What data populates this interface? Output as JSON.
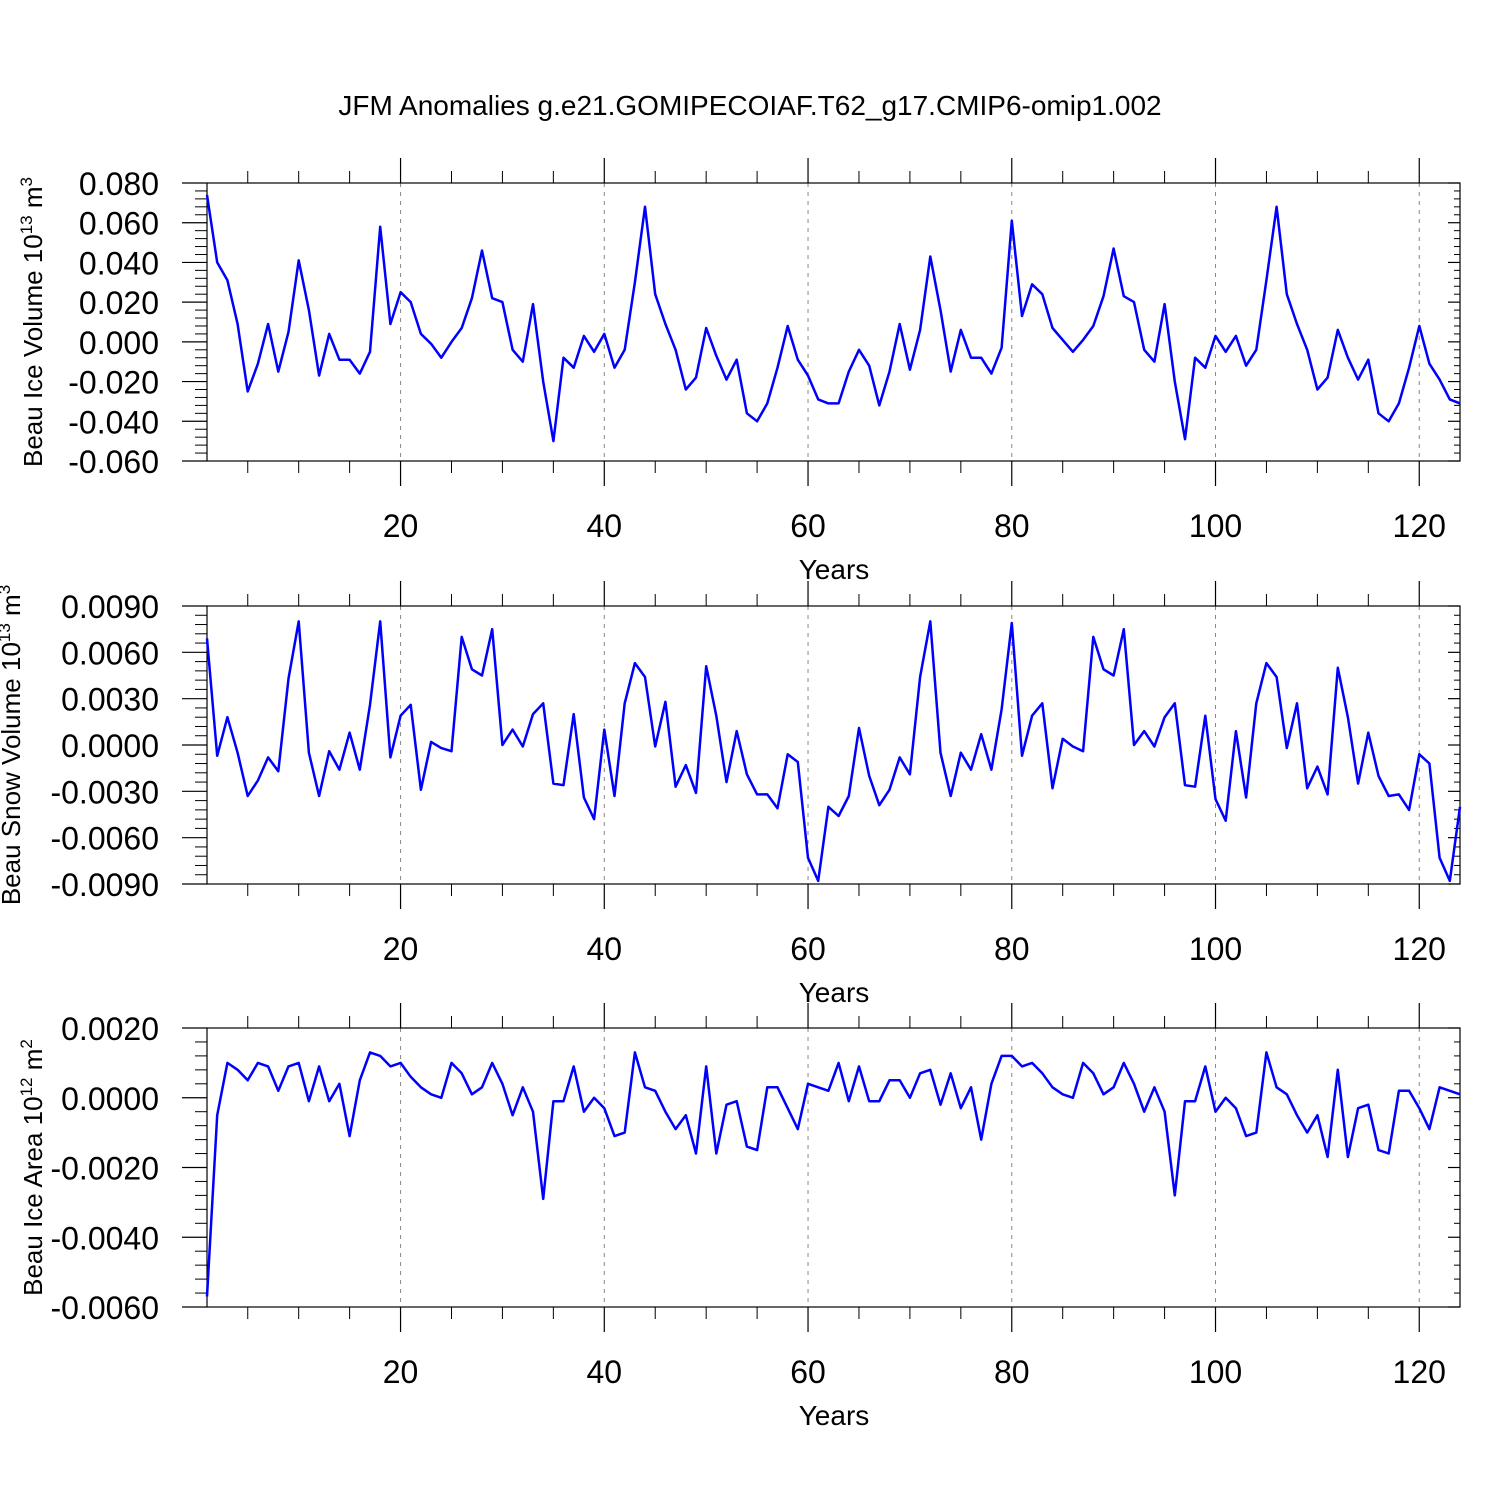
{
  "title": "JFM Anomalies g.e21.GOMIPECOIAF.T62_g17.CMIP6-omip1.002",
  "colors": {
    "series": "#0000ff",
    "grid": "#888888",
    "axis": "#000000"
  },
  "chart_data": [
    {
      "type": "line",
      "ylabel": "Beau Ice Volume 10",
      "ylabel_exp": "13",
      "ylabel_unit": " m",
      "ylabel_unit_exp": "3",
      "xlabel": "Years",
      "xlim": [
        1,
        124
      ],
      "ylim": [
        -0.06,
        0.08
      ],
      "yticks": [
        -0.06,
        -0.04,
        -0.02,
        0.0,
        0.02,
        0.04,
        0.06,
        0.08
      ],
      "ytick_labels": [
        "-0.060",
        "-0.040",
        "-0.020",
        "0.000",
        "0.020",
        "0.040",
        "0.060",
        "0.080"
      ],
      "xticks": [
        20,
        40,
        60,
        80,
        100,
        120
      ],
      "xtick_labels": [
        "20",
        "40",
        "60",
        "80",
        "100",
        "120"
      ],
      "grid": "vertical dashed at x ticks",
      "series": [
        {
          "name": "Beau Ice Volume",
          "x_start": 1,
          "values": [
            0.074,
            0.04,
            0.031,
            0.009,
            -0.025,
            -0.011,
            0.009,
            -0.015,
            0.005,
            0.041,
            0.016,
            -0.017,
            0.004,
            -0.009,
            -0.009,
            -0.016,
            -0.005,
            0.058,
            0.009,
            0.025,
            0.02,
            0.004,
            -0.001,
            -0.008,
            0.0,
            0.007,
            0.022,
            0.046,
            0.022,
            0.02,
            -0.004,
            -0.01,
            0.019,
            -0.02,
            -0.05,
            -0.008,
            -0.013,
            0.003,
            -0.005,
            0.004,
            -0.013,
            -0.004,
            0.03,
            0.068,
            0.024,
            0.009,
            -0.004,
            -0.024,
            -0.018,
            0.007,
            -0.007,
            -0.019,
            -0.009,
            -0.036,
            -0.04,
            -0.031,
            -0.013,
            0.008,
            -0.009,
            -0.017,
            -0.029,
            -0.031,
            -0.031,
            -0.015,
            -0.004,
            -0.012,
            -0.032,
            -0.015,
            0.009,
            -0.014,
            0.006,
            0.043,
            0.016,
            -0.015,
            0.006,
            -0.008,
            -0.008,
            -0.016,
            -0.003,
            0.061,
            0.013,
            0.029,
            0.024,
            0.007,
            0.001,
            -0.005,
            0.001,
            0.008,
            0.023,
            0.047,
            0.023,
            0.02,
            -0.004,
            -0.01,
            0.019,
            -0.02,
            -0.049,
            -0.008,
            -0.013,
            0.003,
            -0.005,
            0.003,
            -0.012,
            -0.004,
            0.031,
            0.068,
            0.024,
            0.009,
            -0.004,
            -0.024,
            -0.018,
            0.006,
            -0.008,
            -0.019,
            -0.009,
            -0.036,
            -0.04,
            -0.031,
            -0.013,
            0.008,
            -0.011,
            -0.019,
            -0.029,
            -0.031
          ]
        }
      ]
    },
    {
      "type": "line",
      "ylabel": "Beau Snow Volume 10",
      "ylabel_exp": "13",
      "ylabel_unit": " m",
      "ylabel_unit_exp": "3",
      "xlabel": "Years",
      "xlim": [
        1,
        124
      ],
      "ylim": [
        -0.009,
        0.009
      ],
      "yticks": [
        -0.009,
        -0.006,
        -0.003,
        0.0,
        0.003,
        0.006,
        0.009
      ],
      "ytick_labels": [
        "-0.0090",
        "-0.0060",
        "-0.0030",
        "0.0000",
        "0.0030",
        "0.0060",
        "0.0090"
      ],
      "xticks": [
        20,
        40,
        60,
        80,
        100,
        120
      ],
      "xtick_labels": [
        "20",
        "40",
        "60",
        "80",
        "100",
        "120"
      ],
      "grid": "vertical dashed at x ticks",
      "series": [
        {
          "name": "Beau Snow Volume",
          "x_start": 1,
          "values": [
            0.0069,
            -0.0007,
            0.0018,
            -0.0005,
            -0.0033,
            -0.0023,
            -0.0008,
            -0.0017,
            0.0043,
            0.008,
            -0.0005,
            -0.0033,
            -0.0004,
            -0.0016,
            0.0008,
            -0.0016,
            0.0026,
            0.008,
            -0.0008,
            0.0019,
            0.0026,
            -0.0029,
            0.0002,
            -0.0002,
            -0.0004,
            0.007,
            0.0049,
            0.0045,
            0.0075,
            0.0,
            0.001,
            -0.0001,
            0.002,
            0.0027,
            -0.0025,
            -0.0026,
            0.002,
            -0.0034,
            -0.0048,
            0.001,
            -0.0033,
            0.0027,
            0.0053,
            0.0044,
            -0.0001,
            0.0028,
            -0.0027,
            -0.0013,
            -0.0031,
            0.0051,
            0.0019,
            -0.0024,
            0.0009,
            -0.0019,
            -0.0032,
            -0.0032,
            -0.0041,
            -0.0006,
            -0.0011,
            -0.0073,
            -0.0088,
            -0.004,
            -0.0046,
            -0.0033,
            0.0011,
            -0.002,
            -0.0039,
            -0.0029,
            -0.0008,
            -0.0019,
            0.0044,
            0.008,
            -0.0005,
            -0.0033,
            -0.0005,
            -0.0016,
            0.0007,
            -0.0016,
            0.0023,
            0.0079,
            -0.0007,
            0.0019,
            0.0027,
            -0.0028,
            0.0004,
            -0.0001,
            -0.0004,
            0.007,
            0.0049,
            0.0045,
            0.0075,
            0.0,
            0.0009,
            -0.0001,
            0.0018,
            0.0027,
            -0.0026,
            -0.0027,
            0.0019,
            -0.0035,
            -0.0049,
            0.0009,
            -0.0034,
            0.0027,
            0.0053,
            0.0044,
            -0.0002,
            0.0027,
            -0.0028,
            -0.0014,
            -0.0032,
            0.005,
            0.0018,
            -0.0025,
            0.0008,
            -0.002,
            -0.0033,
            -0.0032,
            -0.0042,
            -0.0006,
            -0.0012,
            -0.0073,
            -0.0088,
            -0.004
          ]
        }
      ]
    },
    {
      "type": "line",
      "ylabel": "Beau Ice Area 10",
      "ylabel_exp": "12",
      "ylabel_unit": " m",
      "ylabel_unit_exp": "2",
      "xlabel": "Years",
      "xlim": [
        1,
        124
      ],
      "ylim": [
        -0.006,
        0.002
      ],
      "yticks": [
        -0.006,
        -0.004,
        -0.002,
        0.0,
        0.002
      ],
      "ytick_labels": [
        "-0.0060",
        "-0.0040",
        "-0.0020",
        "0.0000",
        "0.0020"
      ],
      "xticks": [
        20,
        40,
        60,
        80,
        100,
        120
      ],
      "xtick_labels": [
        "20",
        "40",
        "60",
        "80",
        "100",
        "120"
      ],
      "grid": "vertical dashed at x ticks",
      "series": [
        {
          "name": "Beau Ice Area",
          "x_start": 1,
          "values": [
            -0.0057,
            -0.0005,
            0.001,
            0.0008,
            0.0005,
            0.001,
            0.0009,
            0.0002,
            0.0009,
            0.001,
            -0.0001,
            0.0009,
            -0.0001,
            0.0004,
            -0.0011,
            0.0005,
            0.0013,
            0.0012,
            0.0009,
            0.001,
            0.0006,
            0.0003,
            0.0001,
            0.0,
            0.001,
            0.0007,
            0.0001,
            0.0003,
            0.001,
            0.0004,
            -0.0005,
            0.0003,
            -0.0004,
            -0.0029,
            -0.0001,
            -0.0001,
            0.0009,
            -0.0004,
            0.0,
            -0.0003,
            -0.0011,
            -0.001,
            0.0013,
            0.0003,
            0.0002,
            -0.0004,
            -0.0009,
            -0.0005,
            -0.0016,
            0.0009,
            -0.0016,
            -0.0002,
            -0.0001,
            -0.0014,
            -0.0015,
            0.0003,
            0.0003,
            -0.0003,
            -0.0009,
            0.0004,
            0.0003,
            0.0002,
            0.001,
            -0.0001,
            0.0009,
            -0.0001,
            -0.0001,
            0.0005,
            0.0005,
            0.0,
            0.0007,
            0.0008,
            -0.0002,
            0.0007,
            -0.0003,
            0.0003,
            -0.0012,
            0.0004,
            0.0012,
            0.0012,
            0.0009,
            0.001,
            0.0007,
            0.0003,
            0.0001,
            0.0,
            0.001,
            0.0007,
            0.0001,
            0.0003,
            0.001,
            0.0004,
            -0.0004,
            0.0003,
            -0.0004,
            -0.0028,
            -0.0001,
            -0.0001,
            0.0009,
            -0.0004,
            0.0,
            -0.0003,
            -0.0011,
            -0.001,
            0.0013,
            0.0003,
            0.0001,
            -0.0005,
            -0.001,
            -0.0005,
            -0.0017,
            0.0008,
            -0.0017,
            -0.0003,
            -0.0002,
            -0.0015,
            -0.0016,
            0.0002,
            0.0002,
            -0.0003,
            -0.0009,
            0.0003,
            0.0002,
            0.0001
          ]
        }
      ]
    }
  ]
}
